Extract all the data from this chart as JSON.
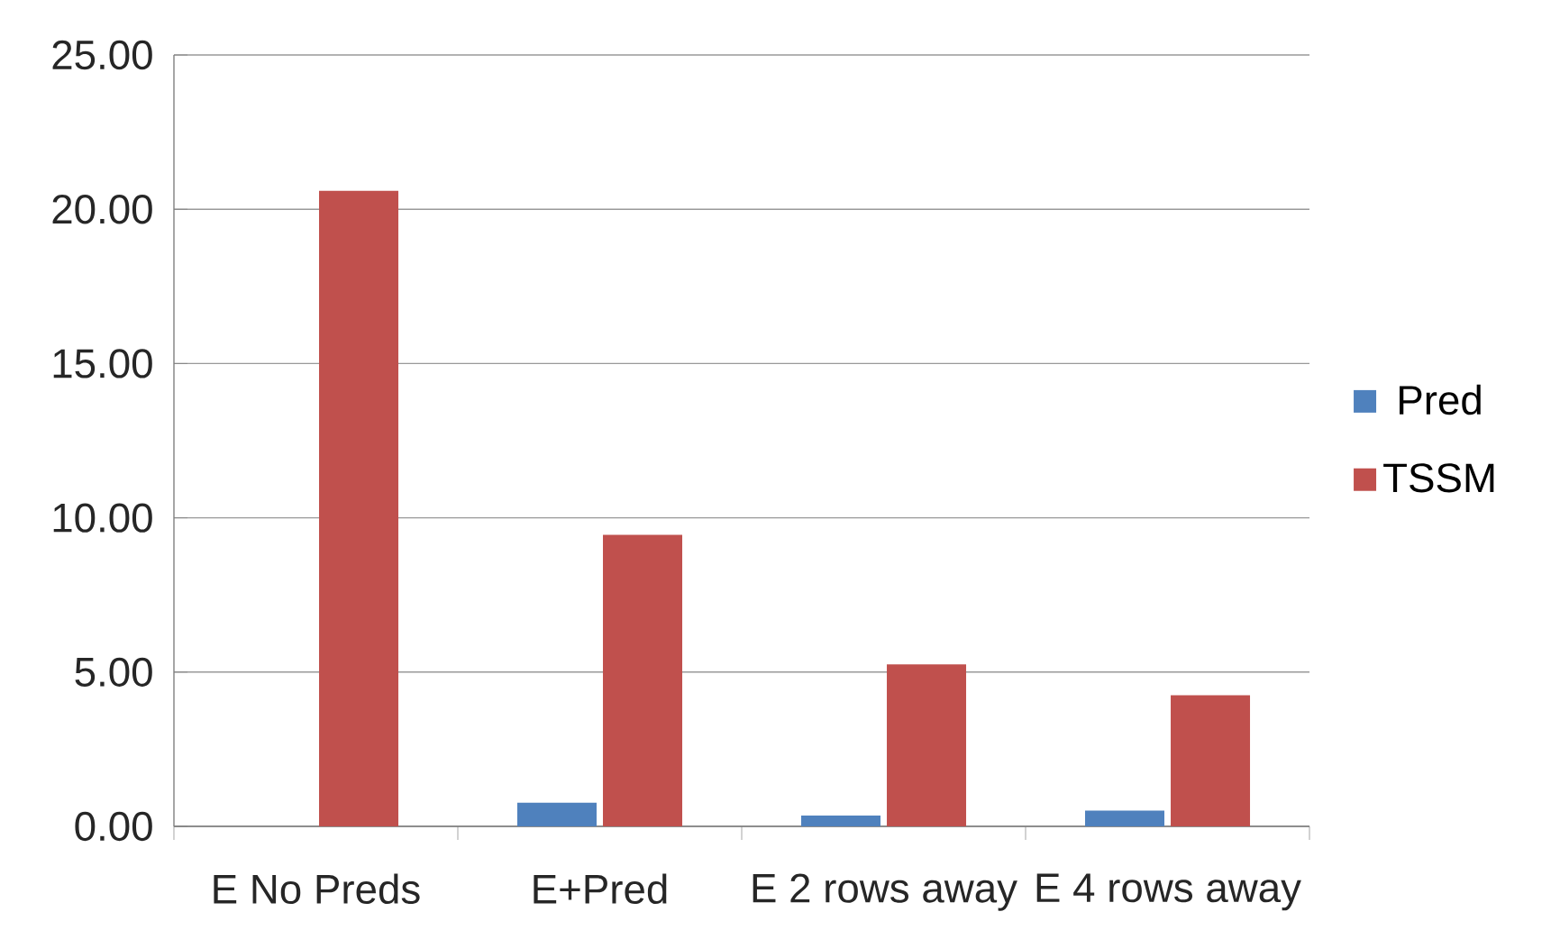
{
  "chart_data": {
    "type": "bar",
    "categories": [
      "E  No Preds",
      "E+Pred",
      "E  2 rows away",
      "E 4 rows away"
    ],
    "series": [
      {
        "name": "Pred",
        "color": "#4f81bd",
        "values": [
          null,
          0.77,
          0.35,
          0.51
        ]
      },
      {
        "name": "TSSM",
        "color": "#c0504d",
        "values": [
          20.6,
          9.45,
          5.25,
          4.25
        ]
      }
    ],
    "ylim": [
      0,
      25
    ],
    "yticks": [
      {
        "value": 0,
        "label": "0.00"
      },
      {
        "value": 5,
        "label": "5.00"
      },
      {
        "value": 10,
        "label": "10.00"
      },
      {
        "value": 15,
        "label": "15.00"
      },
      {
        "value": 20,
        "label": "20.00"
      },
      {
        "value": 25,
        "label": "25.00"
      }
    ],
    "grid": "y",
    "legend": "right"
  }
}
